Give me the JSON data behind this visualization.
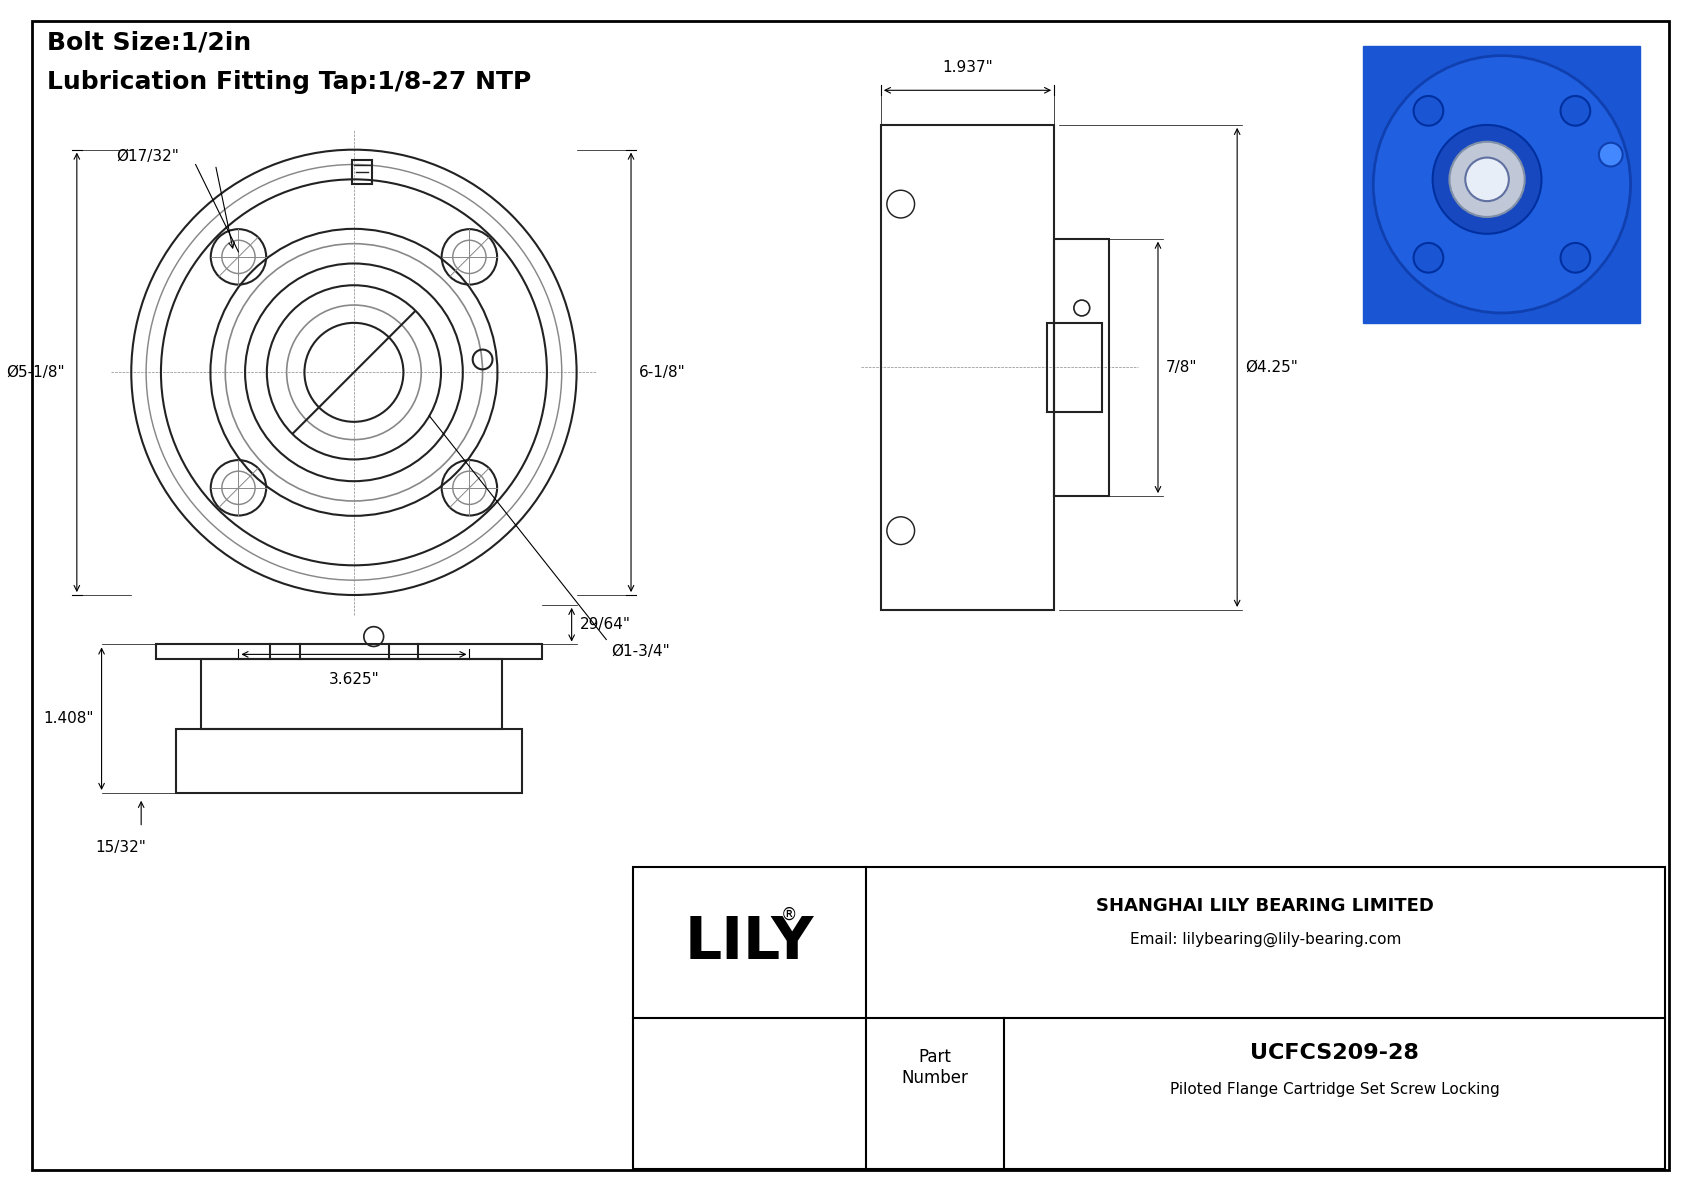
{
  "bg_color": "#ffffff",
  "border_color": "#000000",
  "line_color": "#333333",
  "dim_color": "#000000",
  "title_lines": [
    "Bolt Size:1/2in",
    "Lubrication Fitting Tap:1/8-27 NTP"
  ],
  "title_fontsize": 18,
  "dimensions": {
    "phi_17_32": "Ø17/32\"",
    "phi_5_18": "Ø5-1/8\"",
    "dim_6_18": "6-1/8\"",
    "dim_3_625": "3.625\"",
    "phi_1_34": "Ø1-3/4\"",
    "dim_1_937": "1.937\"",
    "phi_4_25": "Ø4.25\"",
    "dim_7_8": "7/8\"",
    "dim_1_408": "1.408\"",
    "dim_29_64": "29/64\"",
    "dim_15_32": "15/32\""
  },
  "company": "SHANGHAI LILY BEARING LIMITED",
  "email": "Email: lilybearing@lily-bearing.com",
  "part_number": "UCFCS209-28",
  "part_desc": "Piloted Flange Cartridge Set Screw Locking",
  "part_label": "Part\nNumber",
  "lily_text": "LILY",
  "lily_reg": "®"
}
